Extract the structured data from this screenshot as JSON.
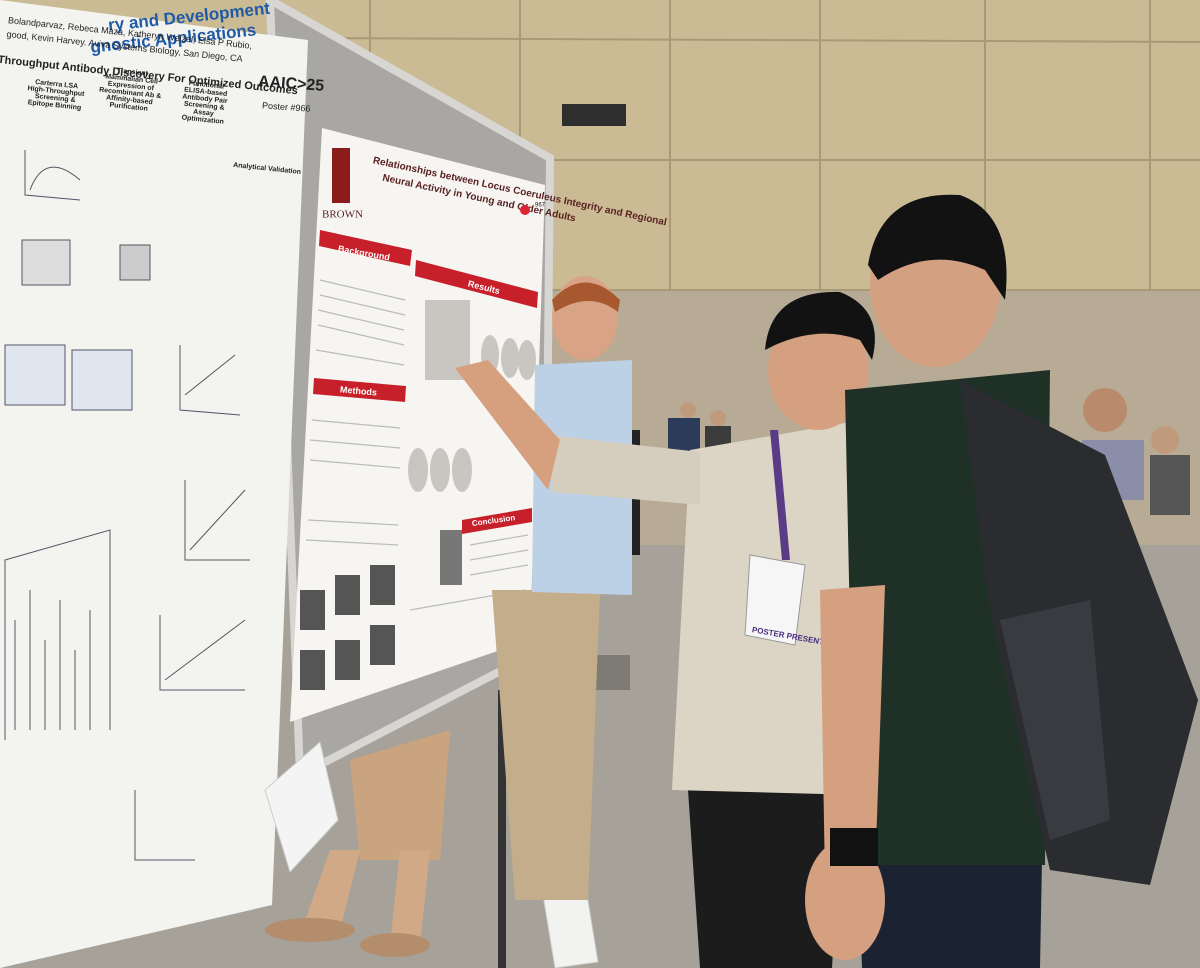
{
  "left_poster": {
    "title_lines": [
      "ry and Development",
      "gnostic Applications"
    ],
    "authors": [
      "Bolandparvaz, Rebeca Maza, Katheryn Welzel, Elsa P Rubio,",
      "good, Kevin Harvey. Aviva Systems Biology, San Diego, CA"
    ],
    "conference": "AAIC>25",
    "poster_number": "Poster #966",
    "section_title": "Throughput Antibody Discovery For Optimized Outcomes",
    "steps": [
      "Carterra LSA High-Throughput Screening & Epitope Binning",
      "Transient Mammalian Cell Expression of Recombinant Ab & Affinity-based Purification",
      "Functional ELISA-based Antibody Pair Screening & Assay Optimization",
      "Analytical Validation"
    ]
  },
  "right_poster": {
    "title_lines": [
      "Relationships between Locus Coeruleus Integrity and Regional",
      "Neural Activity in Young and Older Adults"
    ],
    "institution": "BROWN",
    "number": "967",
    "sections": [
      "Background",
      "Methods",
      "Results",
      "Conclusion"
    ]
  },
  "badge": "POSTER PRESENTER"
}
